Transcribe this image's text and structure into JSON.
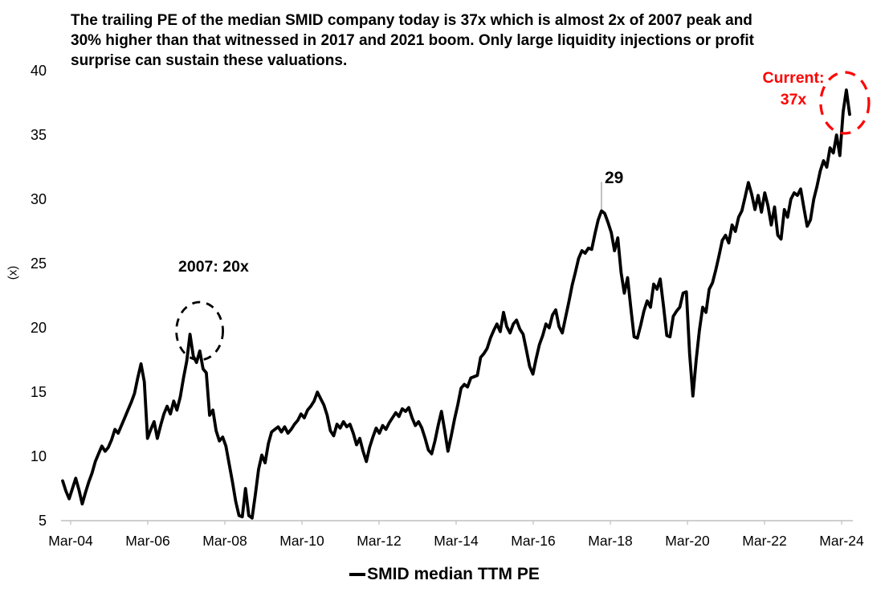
{
  "title": "The trailing PE of the median SMID company today is 37x which is almost 2x of 2007 peak and 30% higher than that witnessed in 2017 and 2021 boom. Only large liquidity injections or profit surprise can sustain these valuations.",
  "y_axis": {
    "title": "(x)",
    "ticks": [
      "40",
      "35",
      "30",
      "25",
      "20",
      "15",
      "10",
      "5"
    ]
  },
  "x_axis": {
    "ticks": [
      "Mar-04",
      "Mar-06",
      "Mar-08",
      "Mar-10",
      "Mar-12",
      "Mar-14",
      "Mar-16",
      "Mar-18",
      "Mar-20",
      "Mar-22",
      "Mar-24"
    ]
  },
  "legend": {
    "label": "SMID median TTM PE"
  },
  "annotations": {
    "peak_2007_label": "2007: 20x",
    "peak_2018_label": "29",
    "current_label_line1": "Current:",
    "current_label_line2": "37x"
  },
  "colors": {
    "line": "#000000",
    "accent_red": "#FE0000",
    "axis_gray": "#BFBFBF",
    "leader_gray": "#999999"
  },
  "chart_data": {
    "type": "line",
    "series_name": "SMID median TTM PE",
    "x_start": "Mar-04",
    "x_end": "Mar-24",
    "frequency": "monthly",
    "xlabel": "",
    "ylabel": "(x)",
    "ylim": [
      5,
      40
    ],
    "grid": false,
    "legend_position": "bottom",
    "notable_points": {
      "peak_2007": 20,
      "peak_dec_2017": 29,
      "covid_2020_low": 14.7,
      "boom_2021_high": 31.3,
      "current": 37
    },
    "values": [
      8.1,
      7.3,
      6.7,
      7.5,
      8.3,
      7.4,
      6.3,
      7.2,
      8.0,
      8.7,
      9.6,
      10.2,
      10.8,
      10.4,
      10.7,
      11.3,
      12.1,
      11.8,
      12.4,
      13.0,
      13.6,
      14.2,
      14.9,
      16.1,
      17.2,
      15.8,
      11.4,
      12.1,
      12.7,
      11.4,
      12.4,
      13.3,
      13.9,
      13.3,
      14.3,
      13.6,
      14.6,
      16.1,
      17.4,
      19.5,
      17.8,
      17.3,
      18.2,
      16.8,
      16.5,
      13.2,
      13.6,
      12.0,
      11.2,
      11.5,
      10.8,
      9.4,
      8.0,
      6.5,
      5.4,
      5.3,
      7.5,
      5.4,
      5.2,
      7.0,
      9.0,
      10.1,
      9.5,
      11.0,
      11.9,
      12.1,
      12.3,
      11.9,
      12.3,
      11.8,
      12.1,
      12.5,
      12.8,
      13.3,
      13.0,
      13.6,
      13.9,
      14.3,
      15.0,
      14.5,
      14.0,
      13.2,
      12.0,
      11.6,
      12.5,
      12.2,
      12.7,
      12.3,
      12.5,
      11.8,
      10.9,
      11.4,
      10.4,
      9.6,
      10.7,
      11.5,
      12.2,
      11.8,
      12.4,
      12.1,
      12.6,
      13.0,
      13.4,
      13.1,
      13.7,
      13.5,
      13.8,
      13.0,
      12.4,
      12.7,
      12.2,
      11.4,
      10.5,
      10.2,
      11.2,
      12.4,
      13.5,
      12.0,
      10.4,
      11.6,
      12.9,
      14.0,
      15.3,
      15.6,
      15.4,
      16.1,
      16.2,
      16.3,
      17.7,
      18.0,
      18.4,
      19.2,
      19.8,
      20.3,
      19.7,
      21.2,
      20.1,
      19.6,
      20.3,
      20.6,
      19.9,
      19.5,
      18.3,
      17.0,
      16.4,
      17.6,
      18.7,
      19.4,
      20.3,
      20.0,
      21.0,
      21.4,
      20.1,
      19.6,
      20.8,
      22.0,
      23.3,
      24.3,
      25.4,
      26.0,
      25.8,
      26.2,
      26.1,
      27.3,
      28.4,
      29.1,
      28.9,
      28.2,
      27.4,
      26.0,
      27.0,
      24.3,
      22.7,
      23.9,
      21.5,
      19.3,
      19.2,
      20.2,
      21.3,
      22.1,
      21.6,
      23.4,
      23.0,
      23.8,
      21.7,
      19.4,
      19.3,
      20.9,
      21.3,
      21.6,
      22.7,
      22.8,
      18.0,
      14.7,
      17.5,
      19.8,
      21.6,
      21.2,
      23.0,
      23.5,
      24.5,
      25.6,
      26.8,
      27.2,
      26.6,
      28.0,
      27.5,
      28.6,
      29.1,
      30.2,
      31.3,
      30.4,
      29.2,
      30.3,
      29.0,
      30.5,
      29.5,
      28.0,
      29.4,
      27.2,
      26.9,
      29.2,
      28.6,
      30.0,
      30.5,
      30.3,
      30.8,
      29.3,
      27.9,
      28.4,
      30.0,
      31.0,
      32.2,
      33.0,
      32.5,
      34.0,
      33.6,
      35.0,
      33.4,
      36.8,
      38.5,
      36.6
    ]
  }
}
